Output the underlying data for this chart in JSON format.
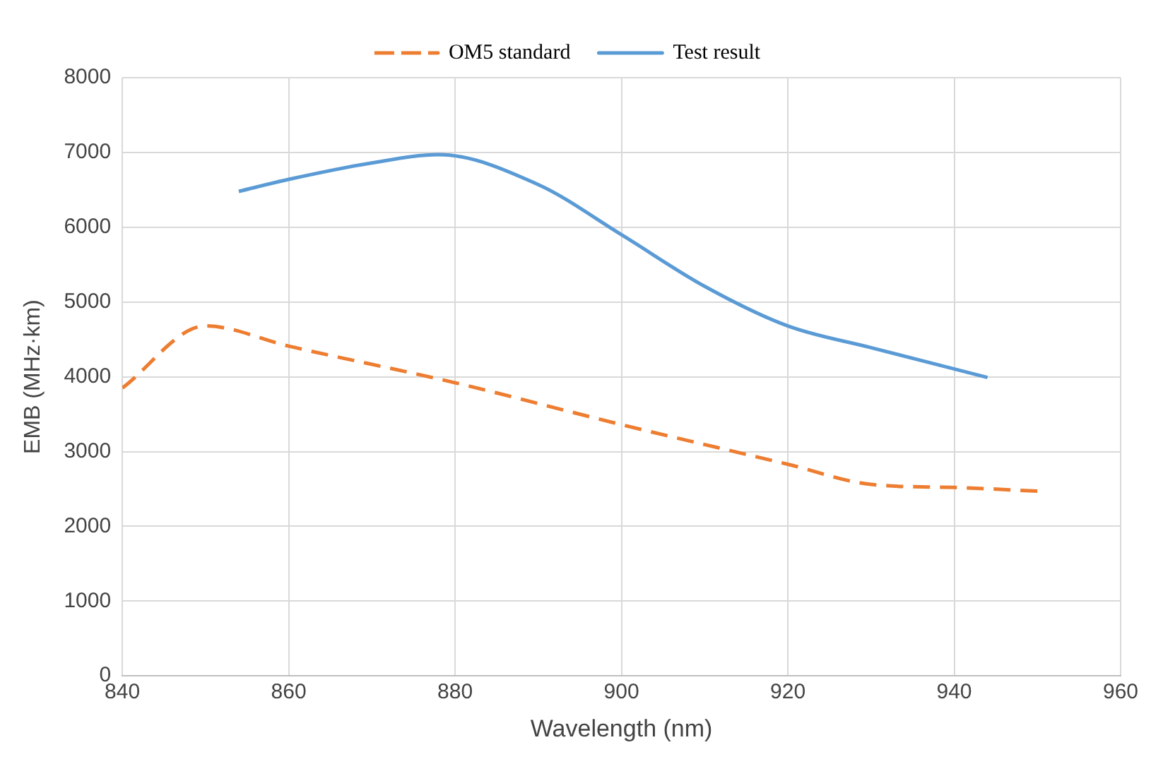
{
  "chart_data": {
    "type": "line",
    "xlabel": "Wavelength (nm)",
    "ylabel": "EMB (MHz·km)",
    "xlim": [
      840,
      960
    ],
    "xticks": [
      840,
      860,
      880,
      900,
      920,
      940,
      960
    ],
    "ylim": [
      0,
      8000
    ],
    "yticks": [
      0,
      1000,
      2000,
      3000,
      4000,
      5000,
      6000,
      7000,
      8000
    ],
    "grid": true,
    "legend": "top",
    "marker": "none",
    "series": [
      {
        "name": "OM5 standard",
        "color": "#ed7d31",
        "line_style": "dashed",
        "x": [
          840,
          850,
          860,
          880,
          900,
          920,
          930,
          940,
          950
        ],
        "values": [
          3850,
          4680,
          4410,
          3920,
          3360,
          2830,
          2560,
          2520,
          2470
        ]
      },
      {
        "name": "Test result",
        "color": "#5b9bd5",
        "line_style": "solid",
        "x": [
          854,
          860,
          870,
          878,
          890,
          900,
          910,
          920,
          930,
          944
        ],
        "values": [
          6480,
          6640,
          6860,
          6970,
          6570,
          5900,
          5210,
          4680,
          4390,
          3990
        ]
      }
    ]
  }
}
